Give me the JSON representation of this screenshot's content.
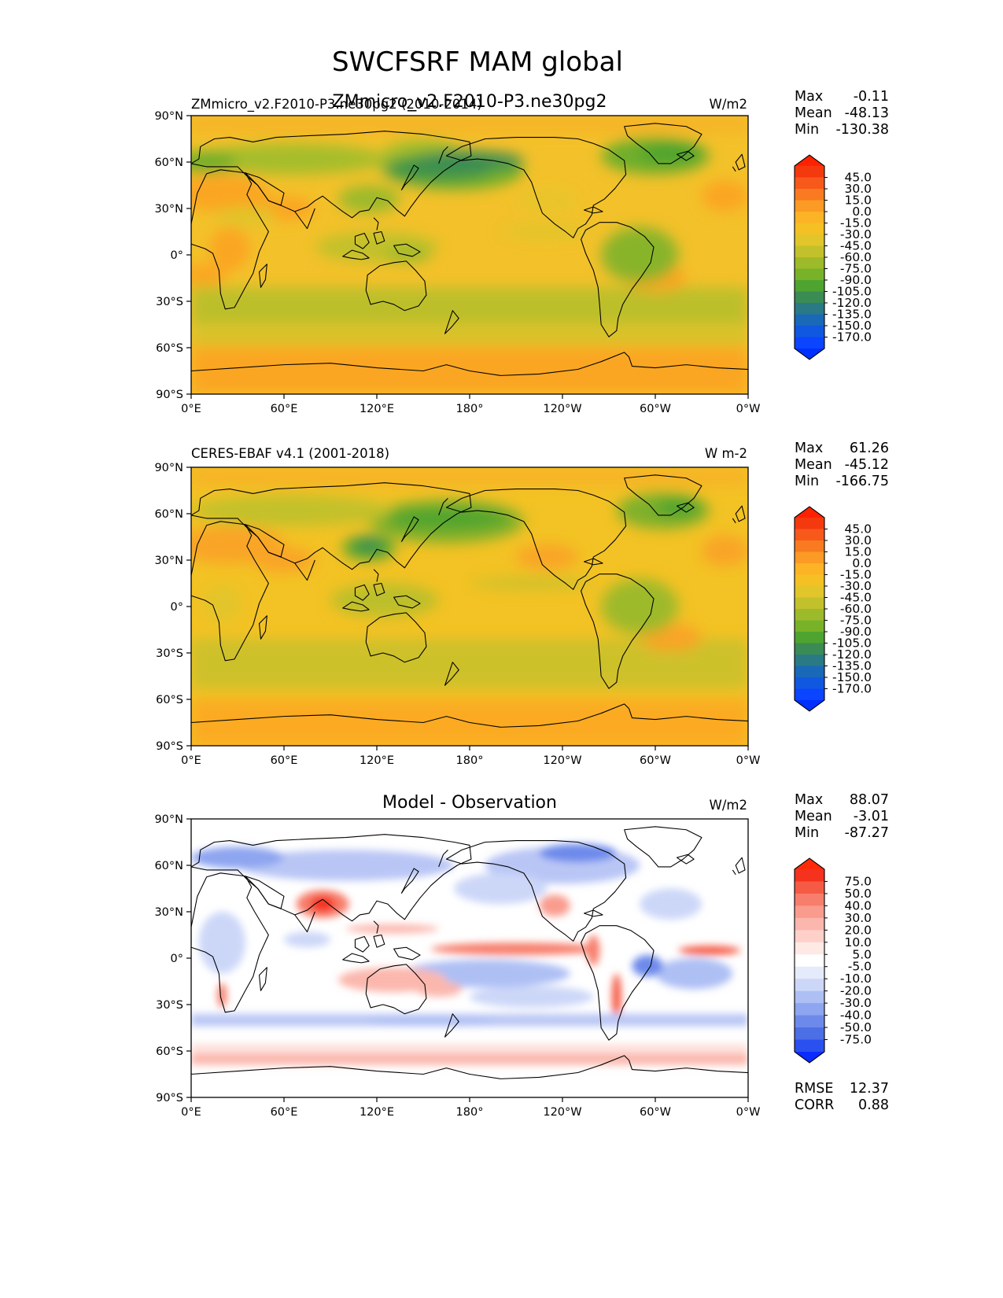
{
  "figure": {
    "title": "SWCFSRF MAM global",
    "overlap_title": "ZMmicro_v2.F2010-P3.ne30pg2"
  },
  "lat_ticks": [
    "90°N",
    "60°N",
    "30°N",
    "0°",
    "30°S",
    "60°S",
    "90°S"
  ],
  "lon_ticks": [
    "0°E",
    "60°E",
    "120°E",
    "180°",
    "120°W",
    "60°W",
    "0°W"
  ],
  "panels": [
    {
      "id": "test",
      "left_title": "ZMmicro_v2.F2010-P3.ne30pg2 (2010-2014)",
      "center_title": "",
      "units": "W/m2",
      "stats": [
        {
          "label": "Max",
          "value": "-0.11"
        },
        {
          "label": "Mean",
          "value": "-48.13"
        },
        {
          "label": "Min",
          "value": "-130.38"
        }
      ],
      "colorbar_labels": [
        "45.0",
        "30.0",
        "15.0",
        "0.0",
        "-15.0",
        "-30.0",
        "-45.0",
        "-60.0",
        "-75.0",
        "-90.0",
        "-105.0",
        "-120.0",
        "-135.0",
        "-150.0",
        "-170.0"
      ],
      "colorbar_colors": [
        "#f5390e",
        "#f7591a",
        "#f97a20",
        "#fb9a24",
        "#fcb326",
        "#f5c023",
        "#e2c52a",
        "#c2c12b",
        "#9dba2a",
        "#78b229",
        "#4fa42f",
        "#3b8b55",
        "#2a7a85",
        "#1a68b8",
        "#1058e0",
        "#0b45ff"
      ],
      "colorbar_top": "#ff2200",
      "colorbar_bottom": "#0030ff",
      "extra_stats": []
    },
    {
      "id": "ref",
      "left_title": "CERES-EBAF v4.1 (2001-2018)",
      "center_title": "",
      "units": "W m-2",
      "stats": [
        {
          "label": "Max",
          "value": "61.26"
        },
        {
          "label": "Mean",
          "value": "-45.12"
        },
        {
          "label": "Min",
          "value": "-166.75"
        }
      ],
      "colorbar_labels": [
        "45.0",
        "30.0",
        "15.0",
        "0.0",
        "-15.0",
        "-30.0",
        "-45.0",
        "-60.0",
        "-75.0",
        "-90.0",
        "-105.0",
        "-120.0",
        "-135.0",
        "-150.0",
        "-170.0"
      ],
      "colorbar_colors": [
        "#f5390e",
        "#f7591a",
        "#f97a20",
        "#fb9a24",
        "#fcb326",
        "#f5c023",
        "#e2c52a",
        "#c2c12b",
        "#9dba2a",
        "#78b229",
        "#4fa42f",
        "#3b8b55",
        "#2a7a85",
        "#1a68b8",
        "#1058e0",
        "#0b45ff"
      ],
      "colorbar_top": "#ff2200",
      "colorbar_bottom": "#0030ff",
      "extra_stats": []
    },
    {
      "id": "diff",
      "left_title": "",
      "center_title": "Model - Observation",
      "units": "W/m2",
      "stats": [
        {
          "label": "Max",
          "value": "88.07"
        },
        {
          "label": "Mean",
          "value": "-3.01"
        },
        {
          "label": "Min",
          "value": "-87.27"
        }
      ],
      "colorbar_labels": [
        "75.0",
        "50.0",
        "40.0",
        "30.0",
        "20.0",
        "10.0",
        "5.0",
        "-5.0",
        "-10.0",
        "-20.0",
        "-30.0",
        "-40.0",
        "-50.0",
        "-75.0"
      ],
      "colorbar_colors": [
        "#f4321e",
        "#f55a44",
        "#f77e6c",
        "#f99c8e",
        "#fbb7ad",
        "#fdd1ca",
        "#fee9e5",
        "#ffffff",
        "#e6ebfb",
        "#ccd7f8",
        "#aebff4",
        "#8ea5f0",
        "#6d8aeb",
        "#4c6ee6",
        "#2a50ef"
      ],
      "colorbar_top": "#ff2a0a",
      "colorbar_bottom": "#0a2cff",
      "extra_stats": [
        {
          "label": "RMSE",
          "value": "12.37"
        },
        {
          "label": "CORR",
          "value": "0.88"
        }
      ]
    }
  ]
}
